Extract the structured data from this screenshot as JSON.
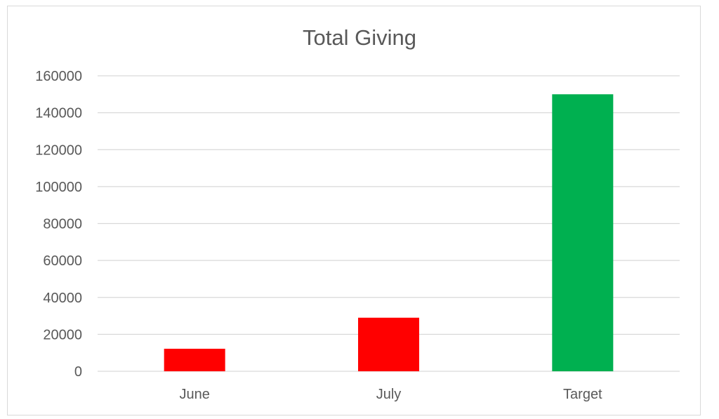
{
  "chart_data": {
    "type": "bar",
    "title": "Total Giving",
    "xlabel": "",
    "ylabel": "",
    "categories": [
      "June",
      "July",
      "Target"
    ],
    "values": [
      12200,
      29000,
      150000
    ],
    "bar_colors": [
      "#ff0000",
      "#ff0000",
      "#00b050"
    ],
    "ylim": [
      0,
      160000
    ],
    "yticks": [
      0,
      20000,
      40000,
      60000,
      80000,
      100000,
      120000,
      140000,
      160000
    ],
    "ytick_labels": [
      "0",
      "20000",
      "40000",
      "60000",
      "80000",
      "100000",
      "120000",
      "140000",
      "160000"
    ],
    "grid": true,
    "legend": "none",
    "colors": {
      "text": "#595959",
      "grid": "#d9d9d9",
      "border": "#d9d9d9"
    }
  }
}
